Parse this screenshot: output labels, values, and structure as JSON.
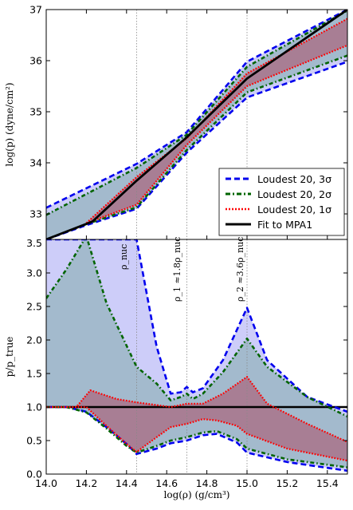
{
  "chart_data": [
    {
      "type": "area",
      "panel": "top",
      "xlabel": "",
      "ylabel": "log(p) (dyne/cm²)",
      "xlim": [
        14.0,
        15.5
      ],
      "ylim": [
        32.5,
        37.0
      ],
      "ytick_labels": [
        "33",
        "34",
        "35",
        "36",
        "37"
      ],
      "ytick_values": [
        33,
        34,
        35,
        36,
        37
      ],
      "vlines": [
        14.45,
        14.7,
        15.0
      ],
      "legend": {
        "placement": "lower-right",
        "entries": [
          "Loudest 20, 3σ",
          "Loudest 20, 2σ",
          "Loudest 20, 1σ",
          "Fit to MPA1"
        ]
      },
      "series": [
        {
          "name": "Loudest 20, 3σ",
          "color": "#0000ee",
          "fill": "#c8c8f8",
          "upper": {
            "x": [
              14.0,
              14.45,
              14.7,
              15.0,
              15.5
            ],
            "y": [
              33.12,
              33.98,
              34.6,
              35.98,
              37.0
            ]
          },
          "lower": {
            "x": [
              14.0,
              14.2,
              14.45,
              14.7,
              15.0,
              15.5
            ],
            "y": [
              32.5,
              32.78,
              33.1,
              34.2,
              35.28,
              35.98
            ]
          }
        },
        {
          "name": "Loudest 20, 2σ",
          "color": "#006400",
          "fill": "#9fb8c8",
          "upper": {
            "x": [
              14.0,
              14.45,
              14.7,
              15.0,
              15.5
            ],
            "y": [
              32.98,
              33.9,
              34.55,
              35.88,
              36.98
            ]
          },
          "lower": {
            "x": [
              14.0,
              14.2,
              14.45,
              14.7,
              15.0,
              15.5
            ],
            "y": [
              32.5,
              32.8,
              33.13,
              34.25,
              35.38,
              36.1
            ]
          }
        },
        {
          "name": "Loudest 20, 1σ",
          "color": "#ff0000",
          "fill": "#a8788e",
          "upper": {
            "x": [
              14.2,
              14.45,
              14.7,
              15.0,
              15.5
            ],
            "y": [
              32.82,
              33.72,
              34.48,
              35.75,
              36.82
            ]
          },
          "lower": {
            "x": [
              14.2,
              14.45,
              14.7,
              15.0,
              15.5
            ],
            "y": [
              32.82,
              33.18,
              34.35,
              35.5,
              36.3
            ]
          }
        },
        {
          "name": "Fit to MPA1",
          "color": "#000000",
          "line": {
            "x": [
              14.0,
              14.23,
              14.45,
              14.7,
              15.0,
              15.5
            ],
            "y": [
              32.5,
              32.85,
              33.65,
              34.5,
              35.65,
              37.0
            ]
          }
        }
      ]
    },
    {
      "type": "area",
      "panel": "bottom",
      "xlabel": "log(ρ) (g/cm³)",
      "ylabel": "p/p_true",
      "xlim": [
        14.0,
        15.5
      ],
      "ylim": [
        0.0,
        3.5
      ],
      "xtick_labels": [
        "14.0",
        "14.2",
        "14.4",
        "14.6",
        "14.8",
        "15.0",
        "15.2",
        "15.4"
      ],
      "xtick_values": [
        14.0,
        14.2,
        14.4,
        14.6,
        14.8,
        15.0,
        15.2,
        15.4
      ],
      "ytick_labels": [
        "0.0",
        "0.5",
        "1.0",
        "1.5",
        "2.0",
        "2.5",
        "3.0",
        "3.5"
      ],
      "ytick_values": [
        0.0,
        0.5,
        1.0,
        1.5,
        2.0,
        2.5,
        3.0,
        3.5
      ],
      "vlines": [
        14.45,
        14.7,
        15.0
      ],
      "annotations": [
        {
          "text": "ρ_nuc",
          "x": 14.45
        },
        {
          "text": "ρ_1 ≈1.8ρ_nuc",
          "x": 14.7
        },
        {
          "text": "ρ_2 ≈3.6ρ_nuc",
          "x": 15.0
        }
      ],
      "hline": 1.0,
      "series": [
        {
          "name": "Loudest 20, 3σ",
          "color": "#0000ee",
          "fill": "#c8c8f8",
          "upper": {
            "x": [
              14.0,
              14.2,
              14.45,
              14.55,
              14.62,
              14.67,
              14.7,
              14.73,
              14.78,
              14.88,
              15.0,
              15.1,
              15.3,
              15.5
            ],
            "y": [
              3.5,
              3.5,
              3.5,
              1.9,
              1.2,
              1.22,
              1.3,
              1.22,
              1.28,
              1.7,
              2.48,
              1.7,
              1.15,
              0.93
            ]
          },
          "lower": {
            "x": [
              14.0,
              14.1,
              14.2,
              14.3,
              14.4,
              14.45,
              14.55,
              14.62,
              14.7,
              14.78,
              14.85,
              14.95,
              15.0,
              15.2,
              15.5
            ],
            "y": [
              1.0,
              1.0,
              0.93,
              0.7,
              0.45,
              0.3,
              0.38,
              0.46,
              0.5,
              0.58,
              0.6,
              0.47,
              0.32,
              0.18,
              0.05
            ]
          }
        },
        {
          "name": "Loudest 20, 2σ",
          "color": "#006400",
          "fill": "#9fb8c8",
          "upper": {
            "x": [
              14.0,
              14.1,
              14.2,
              14.3,
              14.45,
              14.55,
              14.62,
              14.67,
              14.7,
              14.73,
              14.78,
              14.88,
              15.0,
              15.1,
              15.3,
              15.5
            ],
            "y": [
              2.62,
              3.05,
              3.55,
              2.55,
              1.6,
              1.35,
              1.1,
              1.15,
              1.2,
              1.12,
              1.2,
              1.52,
              2.02,
              1.6,
              1.15,
              0.86
            ]
          },
          "lower": {
            "x": [
              14.0,
              14.1,
              14.2,
              14.3,
              14.4,
              14.45,
              14.55,
              14.62,
              14.7,
              14.78,
              14.85,
              14.95,
              15.0,
              15.2,
              15.5
            ],
            "y": [
              1.0,
              1.0,
              0.92,
              0.68,
              0.42,
              0.32,
              0.42,
              0.5,
              0.55,
              0.62,
              0.64,
              0.52,
              0.38,
              0.22,
              0.1
            ]
          }
        },
        {
          "name": "Loudest 20, 1σ",
          "color": "#ff0000",
          "fill": "#a8788e",
          "upper": {
            "x": [
              14.0,
              14.15,
              14.22,
              14.35,
              14.45,
              14.55,
              14.62,
              14.7,
              14.78,
              14.88,
              15.0,
              15.1,
              15.3,
              15.5
            ],
            "y": [
              1.0,
              1.0,
              1.25,
              1.12,
              1.07,
              1.03,
              1.0,
              1.05,
              1.05,
              1.2,
              1.45,
              1.05,
              0.75,
              0.48
            ]
          },
          "lower": {
            "x": [
              14.0,
              14.2,
              14.3,
              14.4,
              14.45,
              14.55,
              14.62,
              14.7,
              14.78,
              14.85,
              14.95,
              15.0,
              15.2,
              15.5
            ],
            "y": [
              1.0,
              1.0,
              0.72,
              0.45,
              0.33,
              0.55,
              0.7,
              0.75,
              0.82,
              0.8,
              0.72,
              0.6,
              0.38,
              0.2
            ]
          }
        }
      ]
    }
  ]
}
